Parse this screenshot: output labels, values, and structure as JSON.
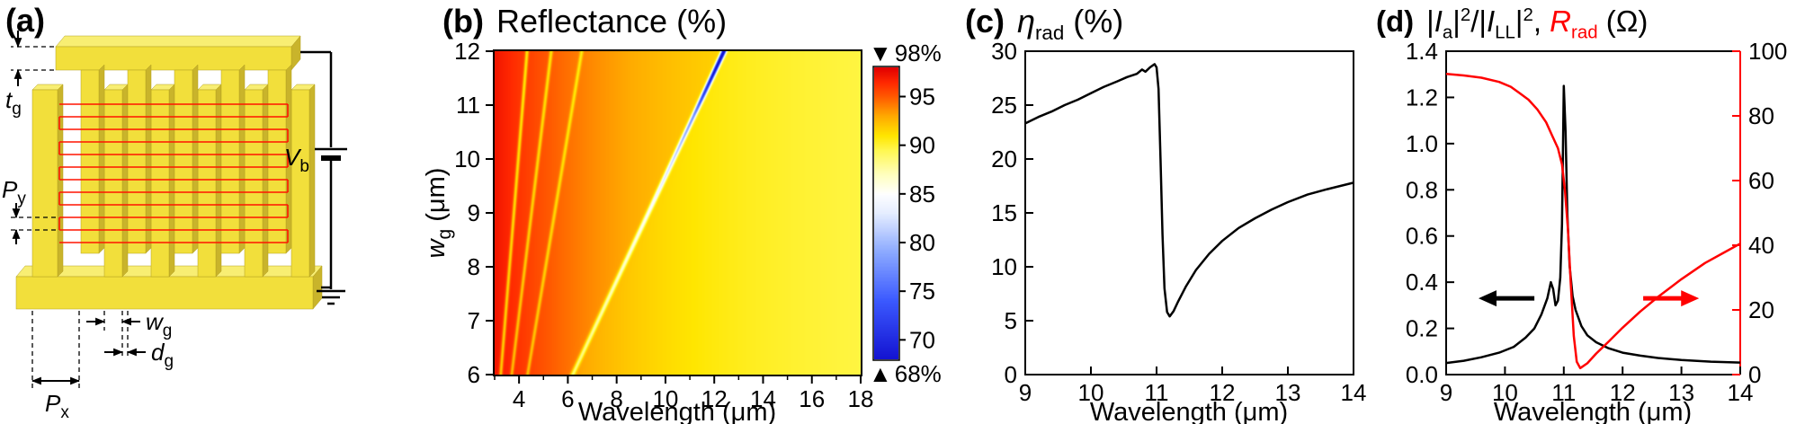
{
  "panel_a": {
    "tag": "(a)",
    "labels": {
      "tg": {
        "main": "t",
        "sub": "g"
      },
      "Py": {
        "main": "P",
        "sub": "y"
      },
      "wg": {
        "main": "w",
        "sub": "g"
      },
      "dg": {
        "main": "d",
        "sub": "g"
      },
      "Px": {
        "main": "P",
        "sub": "x"
      },
      "Vb": {
        "main": "V",
        "sub": "b"
      }
    },
    "colors": {
      "gold": "#F2DF3B",
      "gold_light": "#F8EE73",
      "gold_dark": "#C9B42B",
      "gold_edge": "#B3A020",
      "wire_red": "#FF1400"
    }
  },
  "chart_data": [
    {
      "panel": "b",
      "type": "heatmap",
      "tag": "(b)",
      "title": "Reflectance (%)",
      "xlabel": "Wavelength (μm)",
      "ylabel_main": "w",
      "ylabel_sub": "g",
      "ylabel_rest": " (μm)",
      "xlim": [
        3,
        18
      ],
      "ylim": [
        6,
        12
      ],
      "xtick_values": [
        4,
        6,
        8,
        10,
        12,
        14,
        16,
        18
      ],
      "xtick_labels": [
        "4",
        "6",
        "8",
        "10",
        "12",
        "14",
        "16",
        "18"
      ],
      "xminor_values": [
        3,
        5,
        7,
        9,
        11,
        13,
        15,
        17
      ],
      "ytick_values": [
        6,
        7,
        8,
        9,
        10,
        11,
        12
      ],
      "ytick_labels": [
        "6",
        "7",
        "8",
        "9",
        "10",
        "11",
        "12"
      ],
      "colorbar": {
        "min": 68,
        "max": 98,
        "top_marker": "▼",
        "top_label": "98%",
        "bottom_marker": "▲",
        "bottom_label": "68%",
        "tick_values": [
          95,
          90,
          85,
          80,
          75,
          70
        ],
        "tick_labels": [
          "95",
          "90",
          "85",
          "80",
          "75",
          "70"
        ]
      },
      "colormap_stops": [
        [
          68,
          "#1414D2"
        ],
        [
          74,
          "#3C5AFF"
        ],
        [
          79,
          "#8CAAFF"
        ],
        [
          83,
          "#E6EEFF"
        ],
        [
          85,
          "#FFFFFF"
        ],
        [
          87,
          "#FFFFBE"
        ],
        [
          89.5,
          "#FFF850"
        ],
        [
          91,
          "#FFE600"
        ],
        [
          93,
          "#FFAA00"
        ],
        [
          95,
          "#FF5A00"
        ],
        [
          96.5,
          "#FF2800"
        ],
        [
          98,
          "#E10000"
        ]
      ],
      "reflectance_model": {
        "base_min": 90.2,
        "base_amp": 7.0,
        "base_decay": 6.0,
        "post_resonance_drop": 1.0,
        "resonance": {
          "lambda_at_w6": 6.2,
          "slope": 1.033,
          "sigma": 0.07,
          "depth_profile": [
            [
              6,
              5
            ],
            [
              8,
              6
            ],
            [
              9,
              7
            ],
            [
              10,
              10
            ],
            [
              10.8,
              14
            ],
            [
              11.2,
              20
            ],
            [
              12,
              28
            ]
          ]
        },
        "secondary_resonances": [
          {
            "lambda_at_w6": 3.25,
            "slope": 0.18,
            "sigma": 0.05,
            "depth": 5
          },
          {
            "lambda_at_w6": 3.7,
            "slope": 0.27,
            "sigma": 0.05,
            "depth": 4
          },
          {
            "lambda_at_w6": 4.35,
            "slope": 0.37,
            "sigma": 0.05,
            "depth": 3.5
          }
        ]
      }
    },
    {
      "panel": "c",
      "type": "line",
      "tag": "(c)",
      "title_sym": "η",
      "title_sub": "rad",
      "title_rest": " (%)",
      "xlabel": "Wavelength (μm)",
      "xlim": [
        9,
        14
      ],
      "ylim": [
        0,
        30
      ],
      "xtick_values": [
        9,
        10,
        11,
        12,
        13,
        14
      ],
      "xtick_labels": [
        "9",
        "10",
        "11",
        "12",
        "13",
        "14"
      ],
      "ytick_values": [
        0,
        5,
        10,
        15,
        20,
        25,
        30
      ],
      "ytick_labels": [
        "0",
        "5",
        "10",
        "15",
        "20",
        "25",
        "30"
      ],
      "series": [
        {
          "name": "eta_rad",
          "color": "#000000",
          "width": 2.5,
          "points": [
            [
              9,
              23.3
            ],
            [
              9.2,
              23.9
            ],
            [
              9.4,
              24.4
            ],
            [
              9.6,
              25.0
            ],
            [
              9.8,
              25.5
            ],
            [
              10,
              26.1
            ],
            [
              10.2,
              26.7
            ],
            [
              10.4,
              27.2
            ],
            [
              10.55,
              27.6
            ],
            [
              10.7,
              27.9
            ],
            [
              10.78,
              28.3
            ],
            [
              10.83,
              28.1
            ],
            [
              10.9,
              28.5
            ],
            [
              10.97,
              28.8
            ],
            [
              11.0,
              28.5
            ],
            [
              11.03,
              26.5
            ],
            [
              11.06,
              20.0
            ],
            [
              11.09,
              13.0
            ],
            [
              11.12,
              8.0
            ],
            [
              11.16,
              5.8
            ],
            [
              11.2,
              5.4
            ],
            [
              11.26,
              5.9
            ],
            [
              11.33,
              6.8
            ],
            [
              11.45,
              8.2
            ],
            [
              11.6,
              9.7
            ],
            [
              11.8,
              11.2
            ],
            [
              12.0,
              12.4
            ],
            [
              12.25,
              13.6
            ],
            [
              12.5,
              14.5
            ],
            [
              12.75,
              15.3
            ],
            [
              13.0,
              16.0
            ],
            [
              13.3,
              16.7
            ],
            [
              13.6,
              17.2
            ],
            [
              14.0,
              17.8
            ]
          ]
        }
      ]
    },
    {
      "panel": "d",
      "type": "line-dual-axis",
      "tag": "(d)",
      "title_parts": {
        "b1": "|",
        "i1": "I",
        "s1": "a",
        "b2": "|",
        "e1": "2",
        "m": "/|",
        "i2": "I",
        "s2": "LL",
        "b3": "|",
        "e2": "2",
        "c": ", ",
        "r": "R",
        "rs": "rad",
        "t": " (Ω)"
      },
      "xlabel": "Wavelength (μm)",
      "xlim": [
        9,
        14
      ],
      "left_ylim": [
        0,
        1.4
      ],
      "right_ylim": [
        0,
        100
      ],
      "right_color": "#FF0000",
      "xtick_values": [
        9,
        10,
        11,
        12,
        13,
        14
      ],
      "xtick_labels": [
        "9",
        "10",
        "11",
        "12",
        "13",
        "14"
      ],
      "left_tick_values": [
        0,
        0.2,
        0.4,
        0.6,
        0.8,
        1.0,
        1.2,
        1.4
      ],
      "left_tick_labels": [
        "0.0",
        "0.2",
        "0.4",
        "0.6",
        "0.8",
        "1.0",
        "1.2",
        "1.4"
      ],
      "right_tick_values": [
        0,
        20,
        40,
        60,
        80,
        100
      ],
      "right_tick_labels": [
        "0",
        "20",
        "40",
        "60",
        "80",
        "100"
      ],
      "series": [
        {
          "name": "current_ratio",
          "axis": "left",
          "color": "#000000",
          "width": 2.5,
          "points": [
            [
              9,
              0.05
            ],
            [
              9.3,
              0.06
            ],
            [
              9.6,
              0.075
            ],
            [
              9.9,
              0.095
            ],
            [
              10.15,
              0.12
            ],
            [
              10.35,
              0.16
            ],
            [
              10.5,
              0.2
            ],
            [
              10.62,
              0.26
            ],
            [
              10.72,
              0.33
            ],
            [
              10.78,
              0.4
            ],
            [
              10.82,
              0.37
            ],
            [
              10.86,
              0.3
            ],
            [
              10.9,
              0.32
            ],
            [
              10.94,
              0.42
            ],
            [
              10.97,
              0.65
            ],
            [
              11.0,
              1.25
            ],
            [
              11.03,
              1.05
            ],
            [
              11.06,
              0.7
            ],
            [
              11.1,
              0.47
            ],
            [
              11.15,
              0.34
            ],
            [
              11.2,
              0.28
            ],
            [
              11.3,
              0.21
            ],
            [
              11.4,
              0.17
            ],
            [
              11.55,
              0.14
            ],
            [
              11.75,
              0.115
            ],
            [
              12.0,
              0.095
            ],
            [
              12.3,
              0.082
            ],
            [
              12.6,
              0.072
            ],
            [
              13.0,
              0.063
            ],
            [
              13.5,
              0.056
            ],
            [
              14,
              0.052
            ]
          ]
        },
        {
          "name": "R_rad",
          "axis": "right",
          "color": "#FF0000",
          "width": 2.5,
          "points": [
            [
              9,
              93
            ],
            [
              9.3,
              92.5
            ],
            [
              9.6,
              91.8
            ],
            [
              9.9,
              90.5
            ],
            [
              10.1,
              89
            ],
            [
              10.25,
              87
            ],
            [
              10.4,
              85
            ],
            [
              10.55,
              82
            ],
            [
              10.7,
              78
            ],
            [
              10.8,
              74
            ],
            [
              10.9,
              70
            ],
            [
              10.97,
              65
            ],
            [
              11.02,
              57
            ],
            [
              11.07,
              45
            ],
            [
              11.12,
              28
            ],
            [
              11.17,
              12
            ],
            [
              11.22,
              4
            ],
            [
              11.28,
              2
            ],
            [
              11.4,
              3.5
            ],
            [
              11.55,
              6.5
            ],
            [
              11.75,
              10
            ],
            [
              12.0,
              14.5
            ],
            [
              12.3,
              19.5
            ],
            [
              12.6,
              24
            ],
            [
              13.0,
              29.5
            ],
            [
              13.4,
              34.5
            ],
            [
              13.7,
              37.5
            ],
            [
              14.0,
              40.5
            ]
          ]
        }
      ],
      "arrows": [
        {
          "from_x": 10.5,
          "to_x": 9.55,
          "y_left": 0.33,
          "color": "#000000"
        },
        {
          "from_x": 12.35,
          "to_x": 13.3,
          "y_left": 0.33,
          "color": "#FF0000"
        }
      ]
    }
  ]
}
